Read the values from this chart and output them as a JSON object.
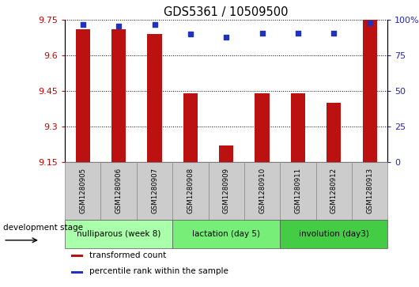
{
  "title": "GDS5361 / 10509500",
  "samples": [
    "GSM1280905",
    "GSM1280906",
    "GSM1280907",
    "GSM1280908",
    "GSM1280909",
    "GSM1280910",
    "GSM1280911",
    "GSM1280912",
    "GSM1280913"
  ],
  "transformed_counts": [
    9.71,
    9.71,
    9.69,
    9.44,
    9.22,
    9.44,
    9.44,
    9.4,
    9.75
  ],
  "percentile_ranks": [
    97,
    96,
    97,
    90,
    88,
    91,
    91,
    91,
    98
  ],
  "ylim_left": [
    9.15,
    9.75
  ],
  "ylim_right": [
    0,
    100
  ],
  "yticks_left": [
    9.15,
    9.3,
    9.45,
    9.6,
    9.75
  ],
  "yticks_right": [
    0,
    25,
    50,
    75,
    100
  ],
  "ytick_labels_right": [
    "0",
    "25",
    "50",
    "75",
    "100%"
  ],
  "bar_color": "#bb1111",
  "dot_color": "#2233bb",
  "groups": [
    {
      "label": "nulliparous (week 8)",
      "start": 0,
      "end": 3,
      "color": "#aaffaa"
    },
    {
      "label": "lactation (day 5)",
      "start": 3,
      "end": 6,
      "color": "#77ee77"
    },
    {
      "label": "involution (day3)",
      "start": 6,
      "end": 9,
      "color": "#44cc44"
    }
  ],
  "legend_items": [
    {
      "label": "transformed count",
      "color": "#bb1111"
    },
    {
      "label": "percentile rank within the sample",
      "color": "#2233bb"
    }
  ],
  "dev_stage_label": "development stage",
  "tick_color_left": "#cc0000",
  "tick_color_right": "#2222cc",
  "background_color": "#ffffff",
  "box_color": "#cccccc",
  "bar_width": 0.4
}
